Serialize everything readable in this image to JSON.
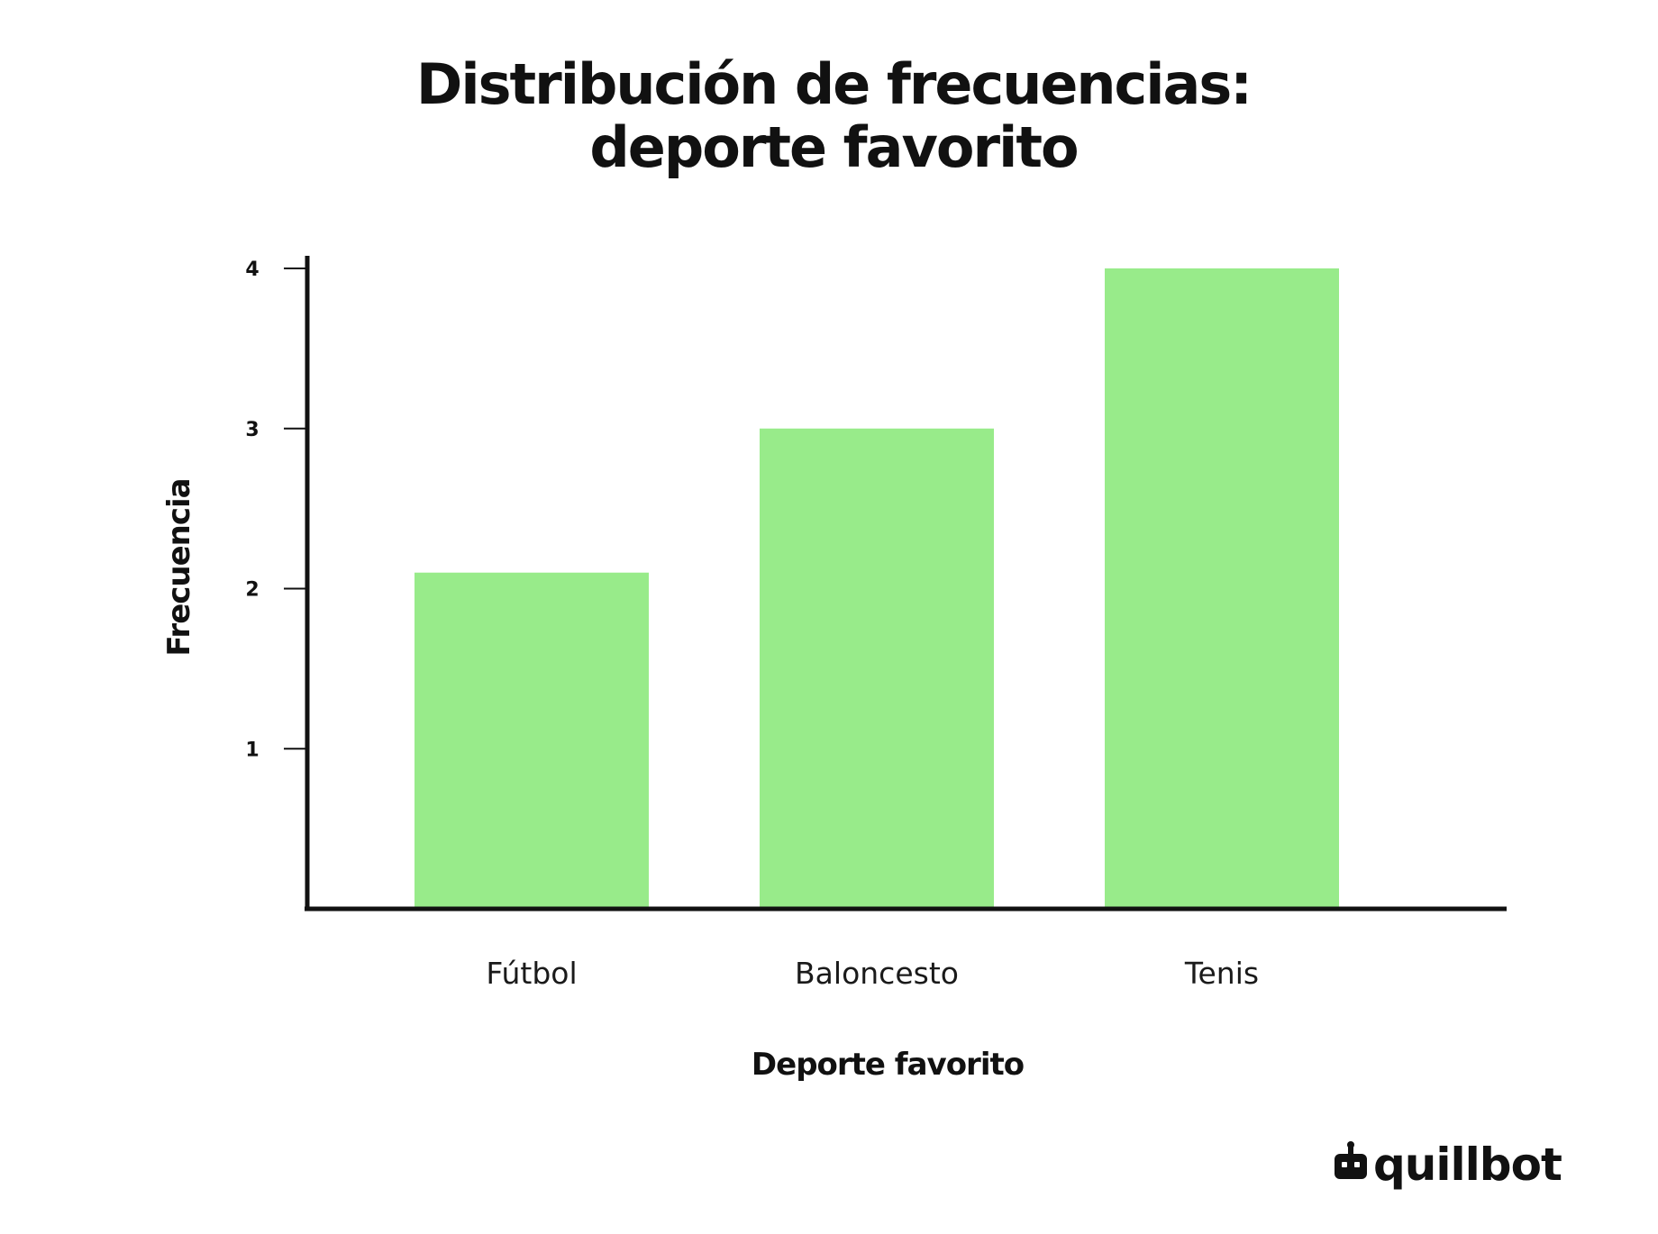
{
  "chart_data": {
    "type": "bar",
    "title_lines": [
      "Distribución de frecuencias:",
      "deporte favorito"
    ],
    "categories": [
      "Fútbol",
      "Baloncesto",
      "Tenis"
    ],
    "values": [
      2.1,
      3,
      4
    ],
    "xlabel": "Deporte favorito",
    "ylabel": "Frecuencia",
    "yticks": [
      1,
      2,
      3,
      4
    ],
    "ylim": [
      0,
      4
    ],
    "grid": false,
    "legend": "none",
    "bar_color": "#98eb8a",
    "axis_color": "#111111"
  },
  "brand": {
    "name": "quillbot",
    "icon": "robot-icon"
  }
}
